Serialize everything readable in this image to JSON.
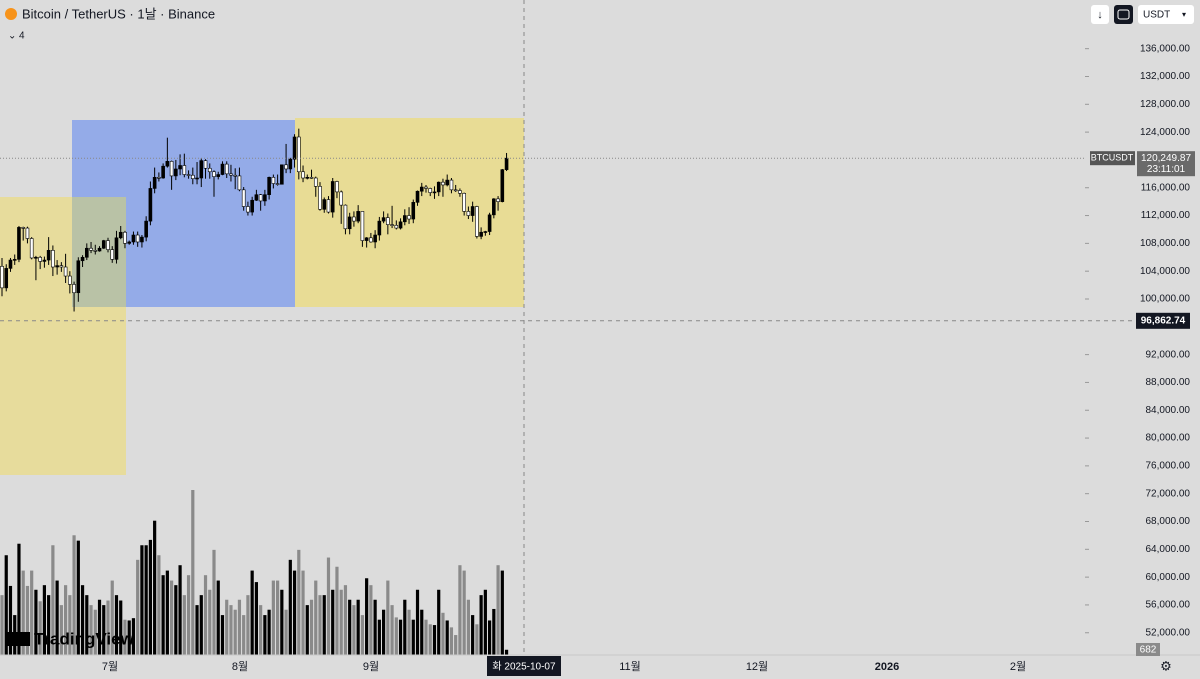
{
  "chart_data": {
    "type": "candlestick",
    "title": "Bitcoin / TetherUS · 1날 · Binance",
    "indicators_count": "4",
    "quote_currency": "USDT",
    "symbol_tag": "BTCUSDT",
    "x_labels": [
      "7월",
      "8월",
      "9월",
      "11월",
      "12월",
      "2026",
      "2월"
    ],
    "crosshair_date": "화 2025-10-07",
    "crosshair_price": {
      "value": 96862.74,
      "label": "96,862.74"
    },
    "last_price": {
      "value": 120249.87,
      "label": "120,249.87"
    },
    "countdown": "23:11:01",
    "watermark": "TradingView",
    "up_color": "#000000",
    "down_color": "#ffffff",
    "volume_up_color": "#000000",
    "volume_down_color": "#8a8a8a",
    "ylim": [
      48800,
      143000
    ],
    "yticks": [
      {
        "value": 52000,
        "label": "52,000.00"
      },
      {
        "value": 56000,
        "label": "56,000.00"
      },
      {
        "value": 60000,
        "label": "60,000.00"
      },
      {
        "value": 64000,
        "label": "64,000.00"
      },
      {
        "value": 68000,
        "label": "68,000.00"
      },
      {
        "value": 72000,
        "label": "72,000.00"
      },
      {
        "value": 76000,
        "label": "76,000.00"
      },
      {
        "value": 80000,
        "label": "80,000.00"
      },
      {
        "value": 84000,
        "label": "84,000.00"
      },
      {
        "value": 88000,
        "label": "88,000.00"
      },
      {
        "value": 92000,
        "label": "92,000.00"
      },
      {
        "value": 100000,
        "label": "100,000.00"
      },
      {
        "value": 104000,
        "label": "104,000.00"
      },
      {
        "value": 108000,
        "label": "108,000.00"
      },
      {
        "value": 112000,
        "label": "112,000.00"
      },
      {
        "value": 116000,
        "label": "116,000.00"
      },
      {
        "value": 124000,
        "label": "124,000.00"
      },
      {
        "value": 128000,
        "label": "128,000.00"
      },
      {
        "value": 132000,
        "label": "132,000.00"
      },
      {
        "value": 136000,
        "label": "136,000.00"
      }
    ],
    "ohlc": [
      [
        104700,
        105900,
        100400,
        101600
      ],
      [
        101600,
        105000,
        101100,
        104400
      ],
      [
        104400,
        105900,
        103900,
        105600
      ],
      [
        105600,
        106400,
        104900,
        105700
      ],
      [
        105700,
        110500,
        105300,
        110300
      ],
      [
        110300,
        110400,
        108400,
        110200
      ],
      [
        110200,
        110400,
        108000,
        108700
      ],
      [
        108700,
        108900,
        105700,
        105900
      ],
      [
        105900,
        106200,
        102700,
        106000
      ],
      [
        106000,
        106200,
        104300,
        105400
      ],
      [
        105400,
        106100,
        104500,
        105600
      ],
      [
        105600,
        108900,
        104900,
        107000
      ],
      [
        107000,
        107700,
        103300,
        104600
      ],
      [
        104600,
        105600,
        103500,
        104800
      ],
      [
        104800,
        105300,
        103900,
        104600
      ],
      [
        104600,
        106500,
        102300,
        103300
      ],
      [
        103300,
        104000,
        100800,
        102100
      ],
      [
        102100,
        102500,
        98200,
        100900
      ],
      [
        100900,
        106000,
        99600,
        105500
      ],
      [
        105500,
        106300,
        104600,
        106000
      ],
      [
        106000,
        108000,
        105600,
        107300
      ],
      [
        107300,
        108200,
        106600,
        107000
      ],
      [
        107000,
        107800,
        106400,
        106900
      ],
      [
        106900,
        107600,
        106800,
        107300
      ],
      [
        107300,
        108500,
        107200,
        108400
      ],
      [
        108400,
        108800,
        106700,
        107100
      ],
      [
        107100,
        107600,
        105200,
        105700
      ],
      [
        105700,
        109800,
        105100,
        108800
      ],
      [
        108800,
        110500,
        108600,
        109600
      ],
      [
        109600,
        109800,
        107300,
        108000
      ],
      [
        108000,
        108400,
        107800,
        108200
      ],
      [
        108200,
        109700,
        107800,
        109200
      ],
      [
        109200,
        109700,
        107500,
        108200
      ],
      [
        108200,
        109200,
        107400,
        108900
      ],
      [
        108900,
        111900,
        108300,
        111200
      ],
      [
        111200,
        116900,
        110600,
        115900
      ],
      [
        115900,
        118900,
        115200,
        117500
      ],
      [
        117500,
        118200,
        116900,
        117400
      ],
      [
        117400,
        119500,
        117300,
        119100
      ],
      [
        119100,
        123200,
        118900,
        119800
      ],
      [
        119800,
        119900,
        115700,
        117700
      ],
      [
        117700,
        120000,
        117100,
        118700
      ],
      [
        118700,
        120800,
        117800,
        119200
      ],
      [
        119200,
        120900,
        117500,
        117900
      ],
      [
        117900,
        118500,
        117300,
        117800
      ],
      [
        117800,
        118900,
        116500,
        117300
      ],
      [
        117300,
        119700,
        116500,
        117400
      ],
      [
        117400,
        120200,
        116100,
        119900
      ],
      [
        119900,
        120100,
        117300,
        118800
      ],
      [
        118800,
        119500,
        117300,
        118300
      ],
      [
        118300,
        118500,
        114700,
        117600
      ],
      [
        117600,
        118300,
        117200,
        117900
      ],
      [
        117900,
        119800,
        117800,
        119400
      ],
      [
        119400,
        119800,
        117400,
        118000
      ],
      [
        118000,
        119300,
        116900,
        117800
      ],
      [
        117800,
        118800,
        115800,
        117700
      ],
      [
        117700,
        118900,
        115500,
        115700
      ],
      [
        115700,
        116100,
        112700,
        113300
      ],
      [
        113300,
        114000,
        112000,
        112500
      ],
      [
        112500,
        114700,
        112000,
        114200
      ],
      [
        114200,
        115700,
        114100,
        115000
      ],
      [
        115000,
        115100,
        112700,
        114100
      ],
      [
        114100,
        115700,
        113400,
        115000
      ],
      [
        115000,
        117600,
        114300,
        117500
      ],
      [
        117500,
        117900,
        115900,
        116600
      ],
      [
        116600,
        117900,
        116300,
        116500
      ],
      [
        116500,
        119300,
        116500,
        119300
      ],
      [
        119300,
        122300,
        118100,
        118700
      ],
      [
        118700,
        120300,
        118100,
        120100
      ],
      [
        120100,
        123700,
        118900,
        123300
      ],
      [
        123300,
        124500,
        117200,
        118300
      ],
      [
        118300,
        119200,
        116800,
        117400
      ],
      [
        117400,
        117900,
        117200,
        117500
      ],
      [
        117500,
        118600,
        117300,
        117400
      ],
      [
        117400,
        117600,
        114700,
        116200
      ],
      [
        116200,
        116800,
        112700,
        112900
      ],
      [
        112900,
        114600,
        112400,
        114300
      ],
      [
        114300,
        114800,
        112300,
        112500
      ],
      [
        112500,
        117400,
        111700,
        116900
      ],
      [
        116900,
        117000,
        114500,
        115400
      ],
      [
        115400,
        115600,
        110800,
        113500
      ],
      [
        113500,
        113600,
        109300,
        110100
      ],
      [
        110100,
        112400,
        109300,
        111800
      ],
      [
        111800,
        112600,
        110400,
        111200
      ],
      [
        111200,
        113500,
        110900,
        112600
      ],
      [
        112600,
        112600,
        107500,
        108400
      ],
      [
        108400,
        108900,
        107400,
        108800
      ],
      [
        108800,
        109500,
        108100,
        108200
      ],
      [
        108200,
        109900,
        107300,
        109200
      ],
      [
        109200,
        111800,
        108400,
        111200
      ],
      [
        111200,
        112600,
        110900,
        111700
      ],
      [
        111700,
        112300,
        109300,
        110700
      ],
      [
        110700,
        113400,
        110200,
        110600
      ],
      [
        110600,
        111300,
        110000,
        110200
      ],
      [
        110200,
        111600,
        110000,
        111100
      ],
      [
        111100,
        112900,
        110600,
        112000
      ],
      [
        112000,
        113200,
        110800,
        111500
      ],
      [
        111500,
        114300,
        110900,
        113900
      ],
      [
        113900,
        115600,
        113400,
        115500
      ],
      [
        115500,
        116700,
        114800,
        116100
      ],
      [
        116100,
        116400,
        115300,
        115900
      ],
      [
        115900,
        116000,
        114800,
        115300
      ],
      [
        115300,
        116200,
        114400,
        115400
      ],
      [
        115400,
        116900,
        114800,
        116800
      ],
      [
        116800,
        117300,
        114700,
        116400
      ],
      [
        116400,
        117900,
        116200,
        117100
      ],
      [
        117100,
        117400,
        115200,
        115700
      ],
      [
        115700,
        116400,
        115400,
        115600
      ],
      [
        115600,
        115900,
        114700,
        115200
      ],
      [
        115200,
        115300,
        112000,
        112600
      ],
      [
        112600,
        113300,
        111500,
        112000
      ],
      [
        112000,
        114000,
        111100,
        113300
      ],
      [
        113300,
        113400,
        108700,
        109000
      ],
      [
        109000,
        110300,
        108600,
        109600
      ],
      [
        109600,
        109800,
        109100,
        109700
      ],
      [
        109700,
        112400,
        109200,
        112100
      ],
      [
        112100,
        114500,
        111600,
        114400
      ],
      [
        114400,
        114800,
        112700,
        114000
      ],
      [
        114000,
        118700,
        113900,
        118600
      ],
      [
        118600,
        121000,
        118400,
        120249.87
      ]
    ],
    "volumes": [
      7800,
      13000,
      9000,
      5200,
      14500,
      11000,
      9000,
      11000,
      8500,
      7000,
      9100,
      7800,
      14300,
      9700,
      6500,
      9100,
      7800,
      15600,
      14900,
      9100,
      7800,
      6500,
      5900,
      7200,
      6500,
      7100,
      9700,
      7800,
      7100,
      4600,
      4500,
      4800,
      12400,
      14300,
      14300,
      15000,
      17500,
      13000,
      10400,
      11000,
      9700,
      9100,
      11700,
      7800,
      10400,
      21500,
      6500,
      7800,
      10400,
      8500,
      13700,
      9700,
      5200,
      7200,
      6500,
      5900,
      7200,
      5200,
      7800,
      11000,
      9500,
      6500,
      5200,
      5900,
      9700,
      9700,
      8500,
      5900,
      12400,
      11000,
      13700,
      11000,
      6500,
      7200,
      9700,
      7800,
      7800,
      12700,
      8500,
      11500,
      8500,
      9100,
      7200,
      6500,
      7200,
      5200,
      10000,
      9100,
      7200,
      4600,
      5900,
      9700,
      6500,
      4900,
      4600,
      7200,
      5900,
      4600,
      8500,
      5900,
      4600,
      4000,
      3900,
      8500,
      5500,
      4500,
      3600,
      2600,
      11700,
      11000,
      7200,
      5200,
      4000,
      7800,
      8500,
      4500,
      6000,
      11700,
      11000,
      682
    ]
  }
}
